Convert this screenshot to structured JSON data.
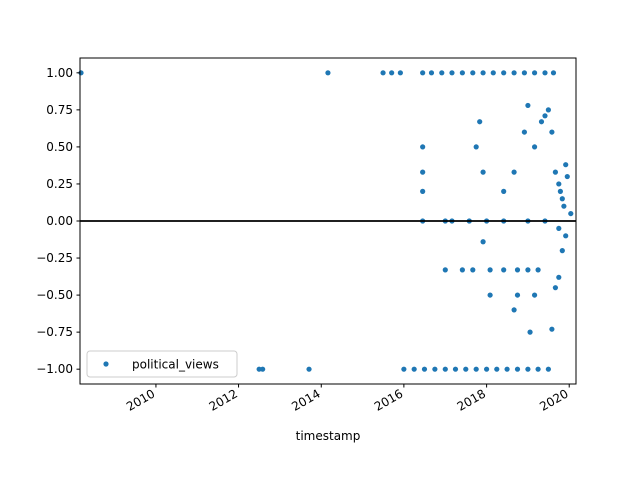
{
  "chart_data": {
    "type": "scatter",
    "title": "",
    "xlabel": "timestamp",
    "ylabel": "",
    "xlim": [
      "2008-03-01",
      "2020-03-01"
    ],
    "ylim": [
      -1.1,
      1.1
    ],
    "x_ticks": [
      "2010",
      "2012",
      "2014",
      "2016",
      "2018",
      "2020"
    ],
    "y_ticks": [
      "1.00",
      "0.75",
      "0.50",
      "0.25",
      "0.00",
      "−0.25",
      "−0.50",
      "−0.75",
      "−1.00"
    ],
    "y_tick_values": [
      1.0,
      0.75,
      0.5,
      0.25,
      0.0,
      -0.25,
      -0.5,
      -0.75,
      -1.0
    ],
    "reference_line": {
      "y": 0.0,
      "color": "#000000"
    },
    "legend": {
      "location": "lower-left",
      "entries": [
        "political_views"
      ]
    },
    "grid": false,
    "series": [
      {
        "name": "political_views",
        "color": "#1f77b4",
        "points": [
          [
            "2008-03-10",
            1.0
          ],
          [
            "2014-03-01",
            1.0
          ],
          [
            "2015-07-01",
            1.0
          ],
          [
            "2015-09-15",
            1.0
          ],
          [
            "2015-12-01",
            1.0
          ],
          [
            "2016-06-15",
            1.0
          ],
          [
            "2016-09-01",
            1.0
          ],
          [
            "2016-12-01",
            1.0
          ],
          [
            "2017-03-01",
            1.0
          ],
          [
            "2017-06-01",
            1.0
          ],
          [
            "2017-09-01",
            1.0
          ],
          [
            "2017-12-01",
            1.0
          ],
          [
            "2018-03-01",
            1.0
          ],
          [
            "2018-06-01",
            1.0
          ],
          [
            "2018-09-01",
            1.0
          ],
          [
            "2018-12-01",
            1.0
          ],
          [
            "2019-03-01",
            1.0
          ],
          [
            "2019-06-01",
            1.0
          ],
          [
            "2019-08-15",
            1.0
          ],
          [
            "2012-07-01",
            -1.0
          ],
          [
            "2012-08-01",
            -1.0
          ],
          [
            "2013-09-15",
            -1.0
          ],
          [
            "2016-01-01",
            -1.0
          ],
          [
            "2016-04-01",
            -1.0
          ],
          [
            "2016-07-01",
            -1.0
          ],
          [
            "2016-10-01",
            -1.0
          ],
          [
            "2017-01-01",
            -1.0
          ],
          [
            "2017-04-01",
            -1.0
          ],
          [
            "2017-07-01",
            -1.0
          ],
          [
            "2017-10-01",
            -1.0
          ],
          [
            "2018-01-01",
            -1.0
          ],
          [
            "2018-04-01",
            -1.0
          ],
          [
            "2018-07-01",
            -1.0
          ],
          [
            "2018-10-01",
            -1.0
          ],
          [
            "2019-01-01",
            -1.0
          ],
          [
            "2019-04-01",
            -1.0
          ],
          [
            "2019-07-01",
            -1.0
          ],
          [
            "2016-06-15",
            0.5
          ],
          [
            "2016-06-15",
            0.33
          ],
          [
            "2016-06-15",
            0.2
          ],
          [
            "2016-06-15",
            0.0
          ],
          [
            "2017-01-01",
            0.0
          ],
          [
            "2017-03-01",
            0.0
          ],
          [
            "2017-08-01",
            0.0
          ],
          [
            "2018-01-01",
            0.0
          ],
          [
            "2018-06-01",
            0.0
          ],
          [
            "2019-01-01",
            0.0
          ],
          [
            "2019-06-01",
            0.0
          ],
          [
            "2017-01-01",
            -0.33
          ],
          [
            "2017-06-01",
            -0.33
          ],
          [
            "2017-09-01",
            -0.33
          ],
          [
            "2018-02-01",
            -0.33
          ],
          [
            "2018-06-01",
            -0.33
          ],
          [
            "2018-10-01",
            -0.33
          ],
          [
            "2019-01-01",
            -0.33
          ],
          [
            "2019-04-01",
            -0.33
          ],
          [
            "2017-12-01",
            -0.14
          ],
          [
            "2018-02-01",
            -0.5
          ],
          [
            "2018-10-01",
            -0.5
          ],
          [
            "2019-03-01",
            -0.5
          ],
          [
            "2018-09-01",
            -0.6
          ],
          [
            "2019-01-20",
            -0.75
          ],
          [
            "2019-08-01",
            -0.73
          ],
          [
            "2017-11-01",
            0.67
          ],
          [
            "2017-10-01",
            0.5
          ],
          [
            "2017-12-01",
            0.33
          ],
          [
            "2018-06-01",
            0.2
          ],
          [
            "2018-09-01",
            0.33
          ],
          [
            "2018-12-01",
            0.6
          ],
          [
            "2019-01-01",
            0.78
          ],
          [
            "2019-03-01",
            0.5
          ],
          [
            "2019-05-01",
            0.67
          ],
          [
            "2019-06-01",
            0.71
          ],
          [
            "2019-07-01",
            0.75
          ],
          [
            "2019-08-01",
            0.6
          ],
          [
            "2019-09-01",
            0.33
          ],
          [
            "2019-10-01",
            0.25
          ],
          [
            "2019-09-01",
            -0.45
          ],
          [
            "2019-10-01",
            -0.38
          ],
          [
            "2019-11-01",
            -0.2
          ],
          [
            "2019-12-01",
            -0.1
          ],
          [
            "2019-10-15",
            0.2
          ],
          [
            "2019-11-15",
            0.1
          ],
          [
            "2019-12-15",
            0.3
          ],
          [
            "2020-01-15",
            0.05
          ],
          [
            "2019-11-01",
            0.15
          ],
          [
            "2019-12-01",
            0.38
          ],
          [
            "2019-10-01",
            -0.05
          ]
        ]
      }
    ]
  }
}
